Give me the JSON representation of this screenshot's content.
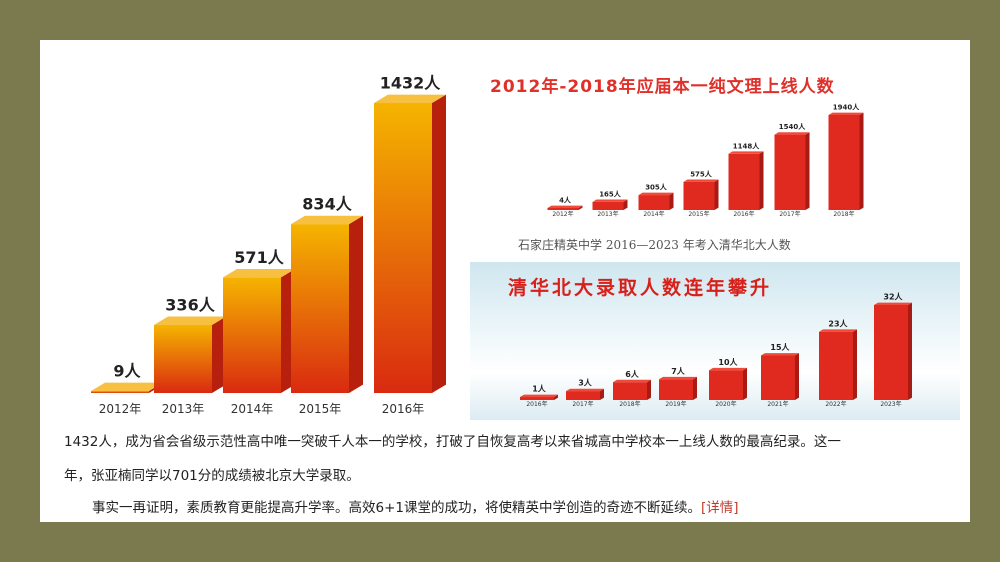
{
  "chart_data": [
    {
      "type": "bar",
      "title": "",
      "categories": [
        "2012年",
        "2013年",
        "2014年",
        "2015年",
        "2016年"
      ],
      "values": [
        9,
        336,
        571,
        834,
        1432
      ],
      "labels": [
        "9人",
        "336人",
        "571人",
        "834人",
        "1432人"
      ],
      "colors": {
        "top": "#f5b400",
        "bottom": "#d92a10"
      }
    },
    {
      "type": "bar",
      "title": "2012年-2018年应届本一纯文理上线人数",
      "categories": [
        "2012年",
        "2013年",
        "2014年",
        "2015年",
        "2016年",
        "2017年",
        "2018年"
      ],
      "values": [
        4,
        165,
        305,
        575,
        1148,
        1540,
        1940
      ],
      "labels": [
        "4人",
        "165人",
        "305人",
        "575人",
        "1148人",
        "1540人",
        "1940人"
      ],
      "caption": "石家庄精英中学 2016—2023 年考入清华北大人数",
      "colors": {
        "bar": "#e02a20",
        "title": "#e0302a"
      }
    },
    {
      "type": "bar",
      "title": "清华北大录取人数连年攀升",
      "categories": [
        "2016年",
        "2017年",
        "2018年",
        "2019年",
        "2020年",
        "2021年",
        "2022年",
        "2023年"
      ],
      "values": [
        1,
        3,
        6,
        7,
        10,
        15,
        23,
        32
      ],
      "labels": [
        "1人",
        "3人",
        "6人",
        "7人",
        "10人",
        "15人",
        "23人",
        "32人"
      ],
      "colors": {
        "bar": "#e02a20",
        "title": "#d8201a"
      }
    }
  ],
  "text": {
    "line1": "1432人，成为省会省级示范性高中唯一突破千人本一的学校，打破了自恢复高考以来省城高中学校本一上线人数的最高纪录。这一",
    "line2": "年，张亚楠同学以701分的成绩被北京大学录取。",
    "line3": "事实一再证明，素质教育更能提高升学率。高效6+1课堂的成功，将使精英中学创造的奇迹不断延续。",
    "link": "[详情]"
  }
}
